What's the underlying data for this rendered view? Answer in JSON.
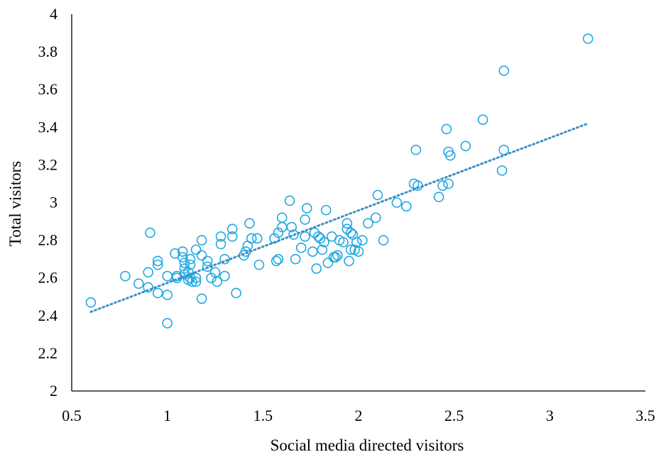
{
  "chart_data": {
    "type": "scatter",
    "xlabel": "Social media directed visitors",
    "ylabel": "Total visitors",
    "xlim": [
      0.5,
      3.5
    ],
    "ylim": [
      2,
      4
    ],
    "xticks": [
      "0.5",
      "1",
      "1.5",
      "2",
      "2.5",
      "3",
      "3.5"
    ],
    "yticks": [
      "2",
      "2.2",
      "2.4",
      "2.6",
      "2.8",
      "3",
      "3.2",
      "3.4",
      "3.6",
      "3.8",
      "4"
    ],
    "grid": false,
    "marker": "open-circle",
    "series_color": "#1fa8e0",
    "trendline": {
      "type": "linear",
      "style": "dotted",
      "x": [
        0.6,
        3.2
      ],
      "y": [
        2.42,
        3.42
      ]
    },
    "points": [
      {
        "x": 0.6,
        "y": 2.47
      },
      {
        "x": 0.78,
        "y": 2.61
      },
      {
        "x": 0.85,
        "y": 2.57
      },
      {
        "x": 0.9,
        "y": 2.55
      },
      {
        "x": 0.9,
        "y": 2.63
      },
      {
        "x": 0.91,
        "y": 2.84
      },
      {
        "x": 0.95,
        "y": 2.69
      },
      {
        "x": 0.95,
        "y": 2.67
      },
      {
        "x": 0.95,
        "y": 2.52
      },
      {
        "x": 1.0,
        "y": 2.51
      },
      {
        "x": 1.0,
        "y": 2.36
      },
      {
        "x": 1.0,
        "y": 2.61
      },
      {
        "x": 1.04,
        "y": 2.73
      },
      {
        "x": 1.05,
        "y": 2.6
      },
      {
        "x": 1.05,
        "y": 2.61
      },
      {
        "x": 1.08,
        "y": 2.74
      },
      {
        "x": 1.08,
        "y": 2.71
      },
      {
        "x": 1.09,
        "y": 2.68
      },
      {
        "x": 1.09,
        "y": 2.65
      },
      {
        "x": 1.09,
        "y": 2.62
      },
      {
        "x": 1.11,
        "y": 2.59
      },
      {
        "x": 1.11,
        "y": 2.63
      },
      {
        "x": 1.12,
        "y": 2.7
      },
      {
        "x": 1.12,
        "y": 2.67
      },
      {
        "x": 1.12,
        "y": 2.6
      },
      {
        "x": 1.13,
        "y": 2.58
      },
      {
        "x": 1.15,
        "y": 2.58
      },
      {
        "x": 1.15,
        "y": 2.6
      },
      {
        "x": 1.15,
        "y": 2.75
      },
      {
        "x": 1.18,
        "y": 2.8
      },
      {
        "x": 1.18,
        "y": 2.72
      },
      {
        "x": 1.18,
        "y": 2.49
      },
      {
        "x": 1.21,
        "y": 2.69
      },
      {
        "x": 1.21,
        "y": 2.66
      },
      {
        "x": 1.23,
        "y": 2.6
      },
      {
        "x": 1.25,
        "y": 2.63
      },
      {
        "x": 1.26,
        "y": 2.58
      },
      {
        "x": 1.28,
        "y": 2.82
      },
      {
        "x": 1.28,
        "y": 2.78
      },
      {
        "x": 1.3,
        "y": 2.61
      },
      {
        "x": 1.3,
        "y": 2.7
      },
      {
        "x": 1.34,
        "y": 2.86
      },
      {
        "x": 1.34,
        "y": 2.82
      },
      {
        "x": 1.36,
        "y": 2.52
      },
      {
        "x": 1.4,
        "y": 2.72
      },
      {
        "x": 1.41,
        "y": 2.74
      },
      {
        "x": 1.42,
        "y": 2.77
      },
      {
        "x": 1.43,
        "y": 2.89
      },
      {
        "x": 1.44,
        "y": 2.81
      },
      {
        "x": 1.47,
        "y": 2.81
      },
      {
        "x": 1.48,
        "y": 2.67
      },
      {
        "x": 1.56,
        "y": 2.81
      },
      {
        "x": 1.57,
        "y": 2.69
      },
      {
        "x": 1.58,
        "y": 2.7
      },
      {
        "x": 1.58,
        "y": 2.84
      },
      {
        "x": 1.6,
        "y": 2.92
      },
      {
        "x": 1.6,
        "y": 2.87
      },
      {
        "x": 1.64,
        "y": 3.01
      },
      {
        "x": 1.65,
        "y": 2.87
      },
      {
        "x": 1.66,
        "y": 2.83
      },
      {
        "x": 1.67,
        "y": 2.7
      },
      {
        "x": 1.7,
        "y": 2.76
      },
      {
        "x": 1.72,
        "y": 2.91
      },
      {
        "x": 1.72,
        "y": 2.82
      },
      {
        "x": 1.73,
        "y": 2.97
      },
      {
        "x": 1.76,
        "y": 2.74
      },
      {
        "x": 1.77,
        "y": 2.84
      },
      {
        "x": 1.78,
        "y": 2.65
      },
      {
        "x": 1.79,
        "y": 2.82
      },
      {
        "x": 1.8,
        "y": 2.81
      },
      {
        "x": 1.81,
        "y": 2.75
      },
      {
        "x": 1.82,
        "y": 2.79
      },
      {
        "x": 1.83,
        "y": 2.96
      },
      {
        "x": 1.84,
        "y": 2.68
      },
      {
        "x": 1.86,
        "y": 2.82
      },
      {
        "x": 1.87,
        "y": 2.71
      },
      {
        "x": 1.88,
        "y": 2.71
      },
      {
        "x": 1.89,
        "y": 2.72
      },
      {
        "x": 1.9,
        "y": 2.8
      },
      {
        "x": 1.92,
        "y": 2.79
      },
      {
        "x": 1.94,
        "y": 2.89
      },
      {
        "x": 1.94,
        "y": 2.86
      },
      {
        "x": 1.95,
        "y": 2.69
      },
      {
        "x": 1.96,
        "y": 2.75
      },
      {
        "x": 1.96,
        "y": 2.84
      },
      {
        "x": 1.97,
        "y": 2.83
      },
      {
        "x": 1.98,
        "y": 2.75
      },
      {
        "x": 1.99,
        "y": 2.79
      },
      {
        "x": 2.0,
        "y": 2.74
      },
      {
        "x": 2.02,
        "y": 2.8
      },
      {
        "x": 2.05,
        "y": 2.89
      },
      {
        "x": 2.09,
        "y": 2.92
      },
      {
        "x": 2.1,
        "y": 3.04
      },
      {
        "x": 2.13,
        "y": 2.8
      },
      {
        "x": 2.2,
        "y": 3.0
      },
      {
        "x": 2.25,
        "y": 2.98
      },
      {
        "x": 2.29,
        "y": 3.1
      },
      {
        "x": 2.3,
        "y": 3.28
      },
      {
        "x": 2.31,
        "y": 3.09
      },
      {
        "x": 2.42,
        "y": 3.03
      },
      {
        "x": 2.44,
        "y": 3.09
      },
      {
        "x": 2.46,
        "y": 3.39
      },
      {
        "x": 2.47,
        "y": 3.1
      },
      {
        "x": 2.47,
        "y": 3.27
      },
      {
        "x": 2.48,
        "y": 3.25
      },
      {
        "x": 2.56,
        "y": 3.3
      },
      {
        "x": 2.65,
        "y": 3.44
      },
      {
        "x": 2.75,
        "y": 3.17
      },
      {
        "x": 2.76,
        "y": 3.28
      },
      {
        "x": 2.76,
        "y": 3.7
      },
      {
        "x": 3.2,
        "y": 3.87
      }
    ]
  }
}
